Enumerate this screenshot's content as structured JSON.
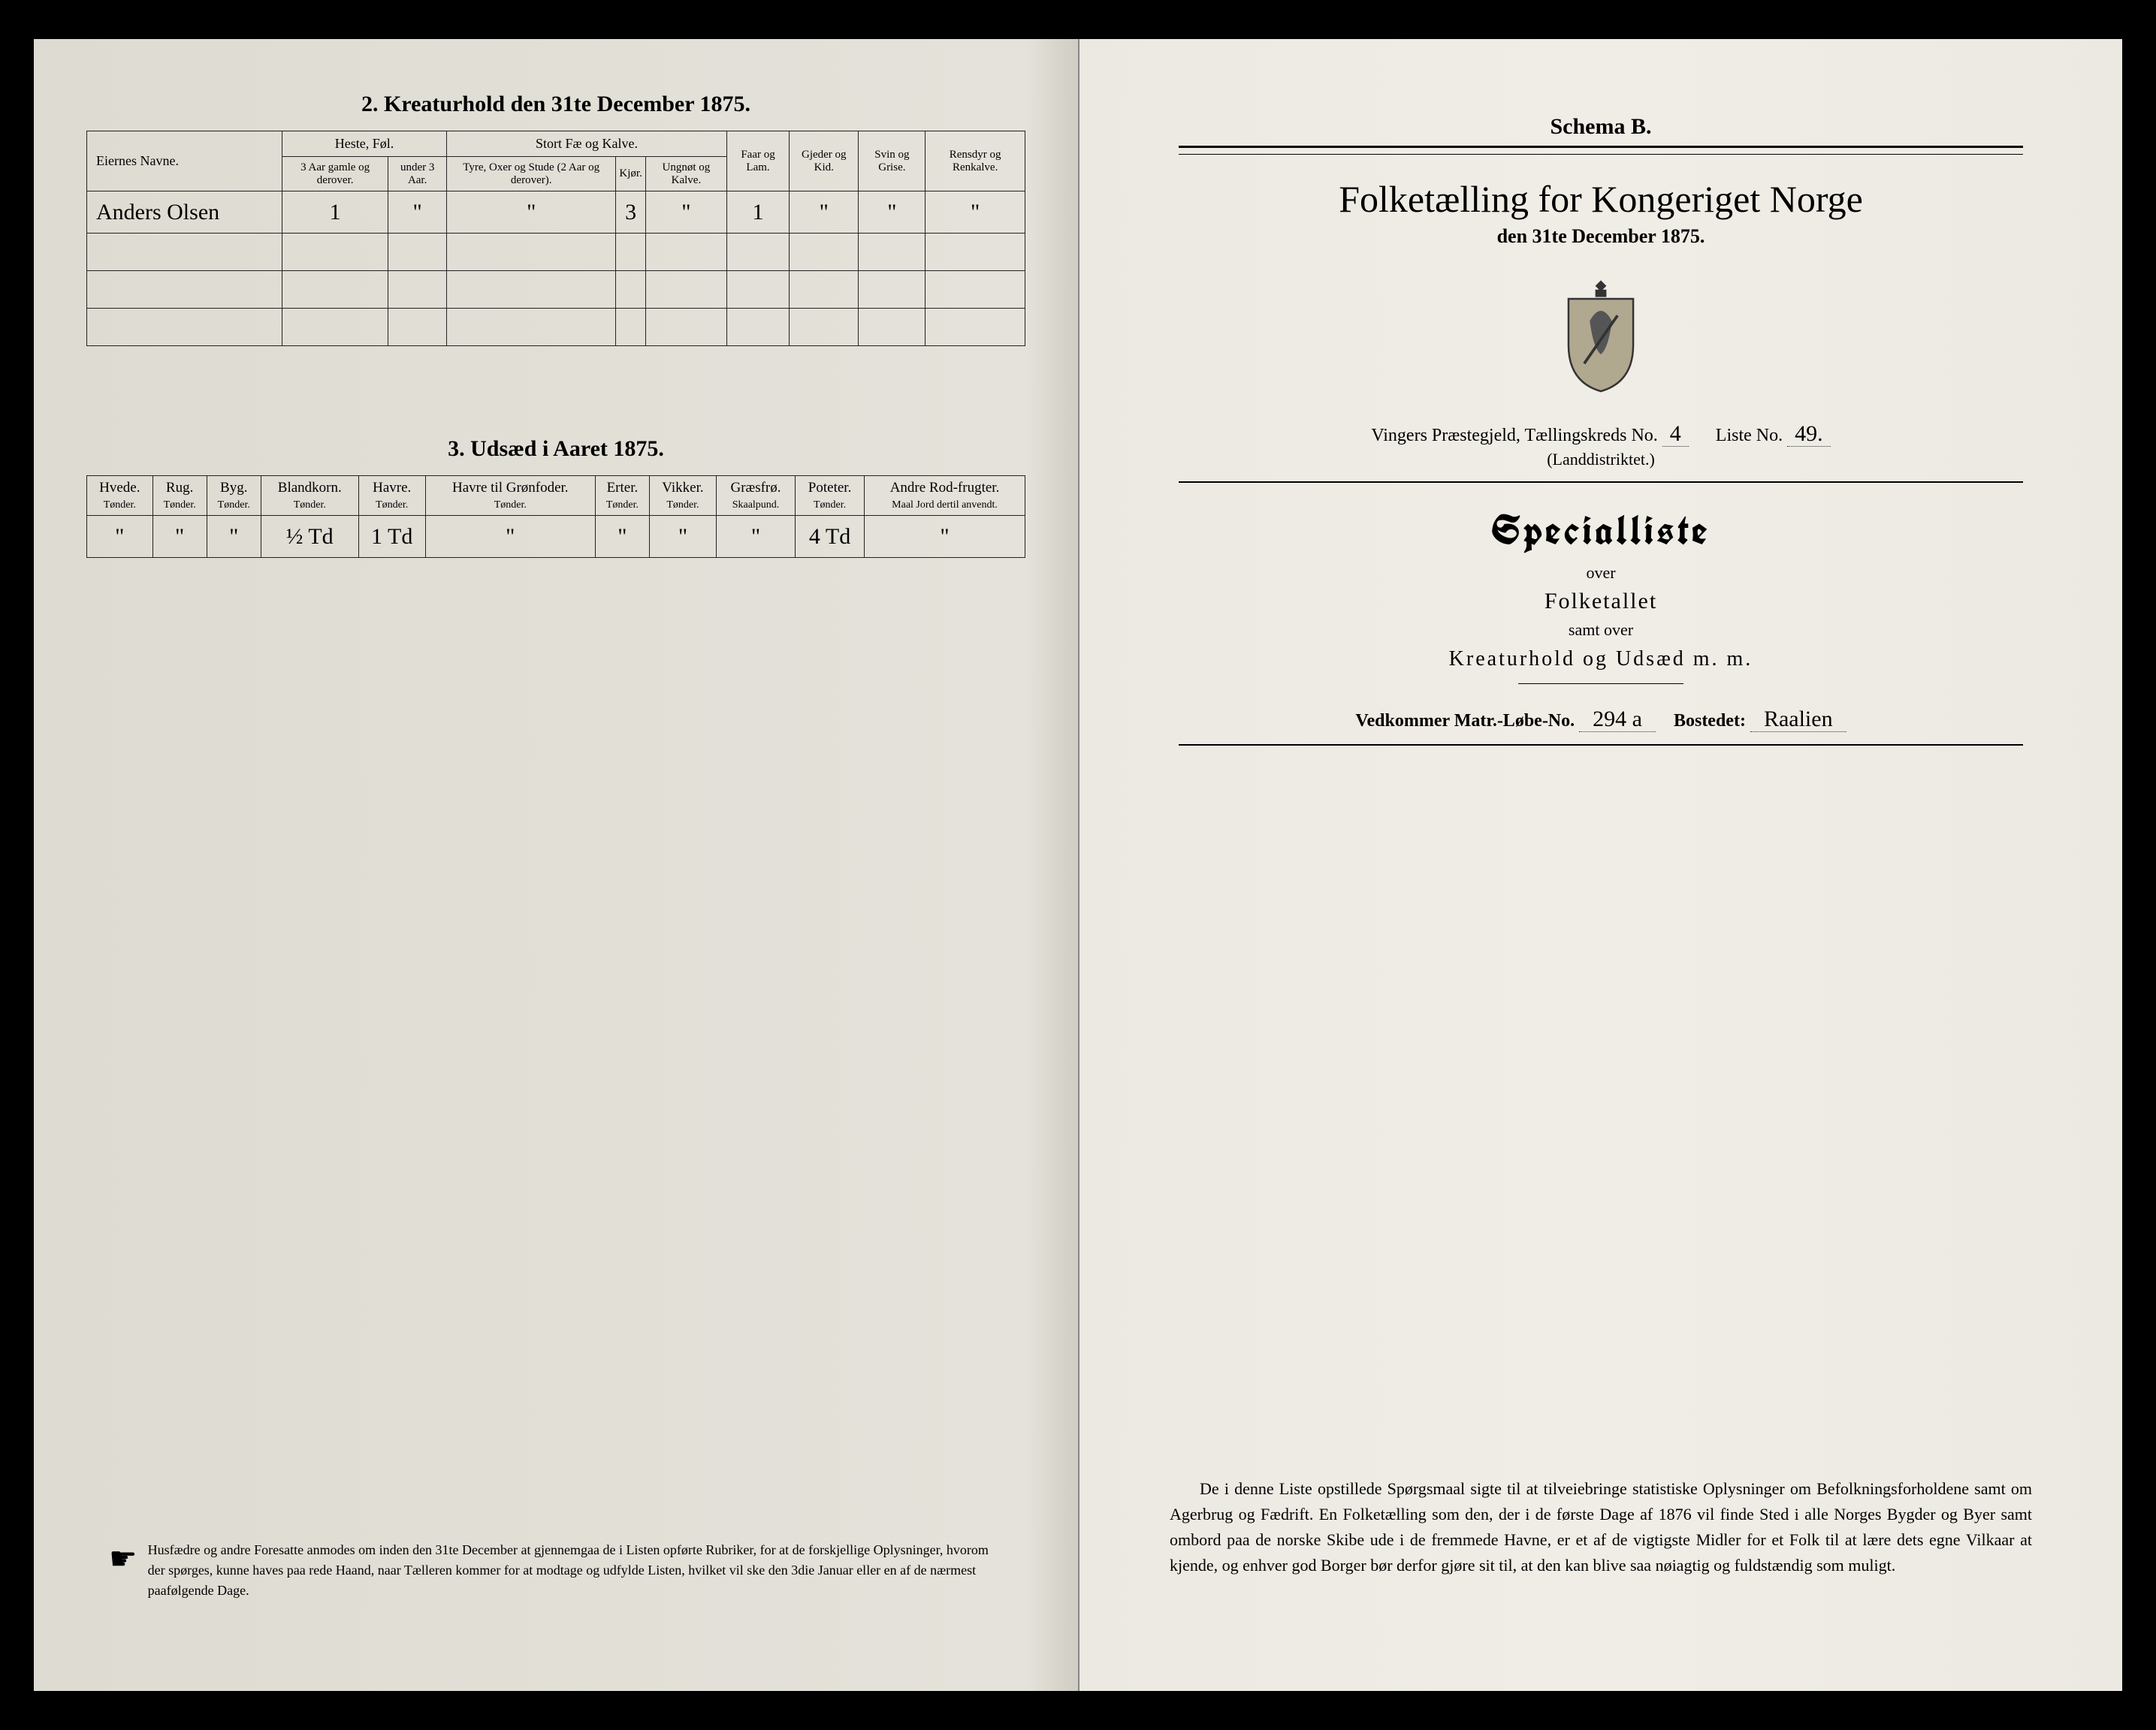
{
  "left": {
    "section2_title": "2.  Kreaturhold den 31te December 1875.",
    "table2": {
      "owner_header": "Eiernes Navne.",
      "groups": [
        {
          "label": "Heste, Føl.",
          "cols": [
            "3 Aar gamle og derover.",
            "under 3 Aar."
          ]
        },
        {
          "label": "Stort Fæ og Kalve.",
          "cols": [
            "Tyre, Oxer og Stude (2 Aar og derover).",
            "Kjør.",
            "Ungnøt og Kalve."
          ]
        },
        {
          "label": "Faar og Lam.",
          "cols": []
        },
        {
          "label": "Gjeder og Kid.",
          "cols": []
        },
        {
          "label": "Svin og Grise.",
          "cols": []
        },
        {
          "label": "Rensdyr og Renkalve.",
          "cols": []
        }
      ],
      "rows": [
        {
          "owner": "Anders Olsen",
          "cells": [
            "1",
            "\"",
            "\"",
            "3",
            "\"",
            "1",
            "\"",
            "\"",
            "\""
          ]
        }
      ]
    },
    "section3_title": "3.  Udsæd i Aaret 1875.",
    "table3": {
      "cols": [
        {
          "h": "Hvede.",
          "s": "Tønder."
        },
        {
          "h": "Rug.",
          "s": "Tønder."
        },
        {
          "h": "Byg.",
          "s": "Tønder."
        },
        {
          "h": "Blandkorn.",
          "s": "Tønder."
        },
        {
          "h": "Havre.",
          "s": "Tønder."
        },
        {
          "h": "Havre til Grønfoder.",
          "s": "Tønder."
        },
        {
          "h": "Erter.",
          "s": "Tønder."
        },
        {
          "h": "Vikker.",
          "s": "Tønder."
        },
        {
          "h": "Græsfrø.",
          "s": "Skaalpund."
        },
        {
          "h": "Poteter.",
          "s": "Tønder."
        },
        {
          "h": "Andre Rod-frugter.",
          "s": "Maal Jord dertil anvendt."
        }
      ],
      "row": [
        "\"",
        "\"",
        "\"",
        "½ Td",
        "1 Td",
        "\"",
        "\"",
        "\"",
        "\"",
        "4 Td",
        "\""
      ]
    },
    "footnote": "Husfædre og andre Foresatte anmodes om inden den 31te December at gjennemgaa de i Listen opførte Rubriker, for at de forskjellige Oplysninger, hvorom der spørges, kunne haves paa rede Haand, naar Tælleren kommer for at modtage og udfylde Listen, hvilket vil ske den 3die Januar eller en af de nærmest paafølgende Dage."
  },
  "right": {
    "schema": "Schema B.",
    "main_title": "Folketælling for Kongeriget Norge",
    "sub_date": "den 31te December 1875.",
    "district_prefix": "Vingers Præstegjeld, Tællingskreds No.",
    "district_no": "4",
    "liste_label": "Liste No.",
    "liste_no": "49.",
    "landd": "(Landdistriktet.)",
    "special": "Specialliste",
    "over": "over",
    "folketallet": "Folketallet",
    "samt_over": "samt over",
    "kreatur": "Kreaturhold og Udsæd m. m.",
    "ved_label": "Vedkommer Matr.-Løbe-No.",
    "ved_no": "294 a",
    "bostedet_label": "Bostedet:",
    "bostedet": "Raalien",
    "bottom": "De i denne Liste opstillede Spørgsmaal sigte til at tilveiebringe statistiske Oplysninger om Befolkningsforholdene samt om Agerbrug og Fædrift.  En Folketælling som den, der i de første Dage af 1876 vil finde Sted i alle Norges Bygder og Byer samt ombord paa de norske Skibe ude i de fremmede Havne, er et af de vigtigste Midler for et Folk til at lære dets egne Vilkaar at kjende, og enhver god Borger bør derfor gjøre sit til, at den kan blive saa nøiagtig og fuldstændig som muligt."
  }
}
